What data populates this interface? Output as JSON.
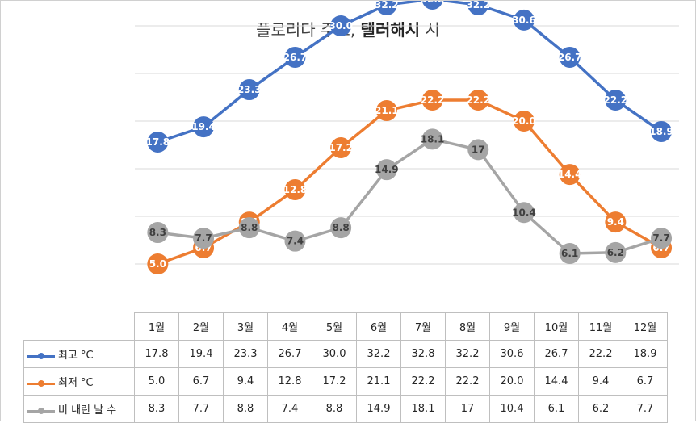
{
  "chart_data": {
    "type": "line",
    "title_prefix": "플로리다 주도, ",
    "title_bold": "탤러해시",
    "title_suffix": " 시",
    "categories": [
      "1월",
      "2월",
      "3월",
      "4월",
      "5월",
      "6월",
      "7월",
      "8월",
      "9월",
      "10월",
      "11월",
      "12월"
    ],
    "series": [
      {
        "name": "최고 °C",
        "color": "#4472C4",
        "labels": [
          "17.8",
          "19.4",
          "23.3",
          "26.7",
          "30.0",
          "32.2",
          "32.8",
          "32.2",
          "30.6",
          "26.7",
          "22.2",
          "18.9"
        ],
        "values": [
          17.8,
          19.4,
          23.3,
          26.7,
          30.0,
          32.2,
          32.8,
          32.2,
          30.6,
          26.7,
          22.2,
          18.9
        ]
      },
      {
        "name": "최저 °C",
        "color": "#ED7D31",
        "labels": [
          "5.0",
          "6.7",
          "9.4",
          "12.8",
          "17.2",
          "21.1",
          "22.2",
          "22.2",
          "20.0",
          "14.4",
          "9.4",
          "6.7"
        ],
        "values": [
          5.0,
          6.7,
          9.4,
          12.8,
          17.2,
          21.1,
          22.2,
          22.2,
          20.0,
          14.4,
          9.4,
          6.7
        ]
      },
      {
        "name": "비 내린 날 수",
        "color": "#A5A5A5",
        "labels": [
          "8.3",
          "7.7",
          "8.8",
          "7.4",
          "8.8",
          "14.9",
          "18.1",
          "17",
          "10.4",
          "6.1",
          "6.2",
          "7.7"
        ],
        "values": [
          8.3,
          7.7,
          8.8,
          7.4,
          8.8,
          14.9,
          18.1,
          17,
          10.4,
          6.1,
          6.2,
          7.7
        ]
      }
    ],
    "ylim": [
      0,
      35
    ],
    "grid": true,
    "data_table": true
  }
}
